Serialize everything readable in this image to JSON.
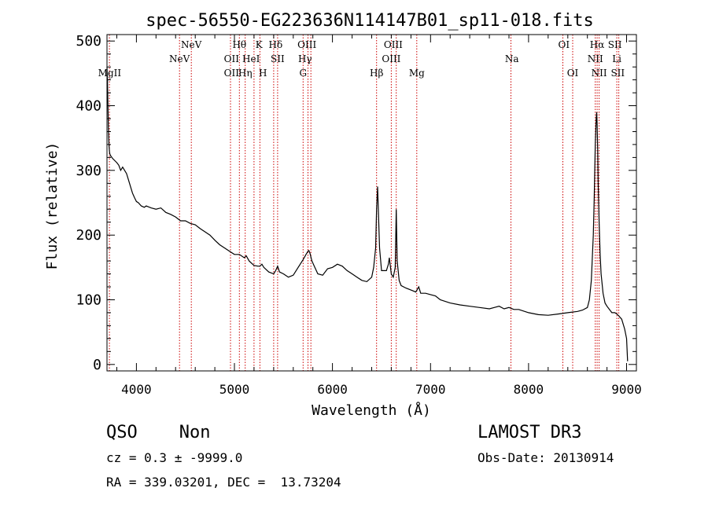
{
  "chart_data": {
    "type": "line",
    "title": "spec-56550-EG223636N114147B01_sp11-018.fits",
    "xlabel": "Wavelength (Å)",
    "ylabel": "Flux (relative)",
    "xlim": [
      3700,
      9100
    ],
    "ylim": [
      -10,
      510
    ],
    "xticks": [
      4000,
      5000,
      6000,
      7000,
      8000,
      9000
    ],
    "xtick_labels": [
      "4000",
      "5000",
      "6000",
      "7000",
      "8000",
      "9000"
    ],
    "yticks": [
      0,
      100,
      200,
      300,
      400,
      500
    ],
    "ytick_labels": [
      "0",
      "100",
      "200",
      "300",
      "400",
      "500"
    ],
    "series": [
      {
        "name": "spectrum",
        "x": [
          3700,
          3705,
          3710,
          3715,
          3720,
          3725,
          3730,
          3740,
          3750,
          3760,
          3780,
          3800,
          3820,
          3840,
          3860,
          3880,
          3900,
          3920,
          3940,
          3960,
          3980,
          4000,
          4020,
          4050,
          4080,
          4100,
          4150,
          4200,
          4250,
          4300,
          4350,
          4400,
          4450,
          4500,
          4550,
          4600,
          4650,
          4700,
          4750,
          4800,
          4850,
          4900,
          4950,
          5000,
          5050,
          5100,
          5120,
          5150,
          5200,
          5240,
          5260,
          5280,
          5300,
          5350,
          5400,
          5420,
          5440,
          5460,
          5500,
          5550,
          5600,
          5650,
          5700,
          5730,
          5750,
          5760,
          5770,
          5790,
          5820,
          5850,
          5900,
          5950,
          6000,
          6050,
          6100,
          6150,
          6200,
          6250,
          6300,
          6350,
          6400,
          6420,
          6440,
          6450,
          6460,
          6480,
          6500,
          6550,
          6570,
          6580,
          6600,
          6620,
          6640,
          6650,
          6660,
          6680,
          6700,
          6750,
          6800,
          6850,
          6880,
          6900,
          6950,
          7000,
          7050,
          7100,
          7200,
          7300,
          7400,
          7500,
          7600,
          7650,
          7700,
          7750,
          7800,
          7850,
          7900,
          8000,
          8100,
          8200,
          8300,
          8400,
          8500,
          8550,
          8600,
          8620,
          8640,
          8660,
          8670,
          8680,
          8690,
          8695,
          8700,
          8705,
          8710,
          8720,
          8730,
          8740,
          8760,
          8780,
          8800,
          8850,
          8880,
          8900,
          8920,
          8950,
          8980,
          9000,
          9010
        ],
        "y": [
          460,
          440,
          400,
          360,
          340,
          330,
          325,
          322,
          320,
          318,
          315,
          312,
          308,
          300,
          305,
          300,
          295,
          285,
          275,
          265,
          258,
          252,
          250,
          245,
          243,
          245,
          242,
          240,
          242,
          235,
          232,
          228,
          222,
          222,
          218,
          216,
          210,
          205,
          200,
          192,
          185,
          180,
          175,
          170,
          170,
          165,
          168,
          160,
          153,
          152,
          152,
          155,
          150,
          143,
          140,
          145,
          152,
          143,
          140,
          135,
          138,
          150,
          162,
          170,
          175,
          176,
          172,
          160,
          150,
          140,
          138,
          148,
          150,
          155,
          152,
          145,
          140,
          135,
          130,
          128,
          135,
          150,
          180,
          240,
          275,
          180,
          145,
          145,
          155,
          165,
          140,
          135,
          150,
          240,
          160,
          130,
          122,
          118,
          115,
          112,
          120,
          110,
          110,
          108,
          106,
          100,
          95,
          92,
          90,
          88,
          86,
          88,
          90,
          86,
          88,
          85,
          85,
          80,
          77,
          76,
          78,
          80,
          82,
          84,
          88,
          100,
          130,
          200,
          260,
          340,
          380,
          390,
          370,
          330,
          280,
          220,
          170,
          140,
          110,
          95,
          90,
          80,
          80,
          78,
          75,
          70,
          55,
          40,
          5
        ]
      }
    ],
    "lines": [
      {
        "label": "MgII",
        "wavelength": 3727,
        "row": 3
      },
      {
        "label": "NeV",
        "wavelength": 4440,
        "row": 2
      },
      {
        "label": "NeV",
        "wavelength": 4560,
        "row": 1
      },
      {
        "label": "OII",
        "wavelength": 4970,
        "row": 2
      },
      {
        "label": "OII",
        "wavelength": 4970,
        "row": 3
      },
      {
        "label": "Hθ",
        "wavelength": 5050,
        "row": 1
      },
      {
        "label": "Hη",
        "wavelength": 5110,
        "row": 3
      },
      {
        "label": "HeI",
        "wavelength": 5170,
        "row": 2
      },
      {
        "label": "K",
        "wavelength": 5250,
        "row": 1
      },
      {
        "label": "H",
        "wavelength": 5290,
        "row": 3
      },
      {
        "label": "Hδ",
        "wavelength": 5420,
        "row": 1
      },
      {
        "label": "SII",
        "wavelength": 5440,
        "row": 2
      },
      {
        "label": "OIII",
        "wavelength": 5740,
        "row": 1
      },
      {
        "label": "Hγ",
        "wavelength": 5720,
        "row": 2
      },
      {
        "label": "G",
        "wavelength": 5700,
        "row": 3
      },
      {
        "label": "Hβ",
        "wavelength": 6450,
        "row": 3
      },
      {
        "label": "OIII",
        "wavelength": 6620,
        "row": 1
      },
      {
        "label": "OIII",
        "wavelength": 6600,
        "row": 2
      },
      {
        "label": "Mg",
        "wavelength": 6860,
        "row": 3
      },
      {
        "label": "Na",
        "wavelength": 7830,
        "row": 2
      },
      {
        "label": "OI",
        "wavelength": 8360,
        "row": 1
      },
      {
        "label": "OI",
        "wavelength": 8450,
        "row": 3
      },
      {
        "label": "Hα",
        "wavelength": 8700,
        "row": 1
      },
      {
        "label": "NII",
        "wavelength": 8680,
        "row": 2
      },
      {
        "label": "NII",
        "wavelength": 8720,
        "row": 3
      },
      {
        "label": "SII",
        "wavelength": 8880,
        "row": 1
      },
      {
        "label": "Li",
        "wavelength": 8900,
        "row": 2
      },
      {
        "label": "SII",
        "wavelength": 8910,
        "row": 3
      }
    ],
    "marker_x": [
      3725,
      4440,
      4560,
      4960,
      5050,
      5110,
      5200,
      5260,
      5400,
      5440,
      5700,
      5750,
      5780,
      6450,
      6600,
      6650,
      6860,
      7820,
      8350,
      8450,
      8680,
      8700,
      8720,
      8900,
      8920
    ]
  },
  "info": {
    "class_label": "QSO    Non",
    "redshift": "cz = 0.3 ± -9999.0",
    "coords": "RA = 339.03201, DEC =  13.73204",
    "survey": "LAMOST DR3",
    "obs_date": "Obs-Date: 20130914"
  },
  "colors": {
    "line": "#000000",
    "marker": "#cc0000"
  }
}
